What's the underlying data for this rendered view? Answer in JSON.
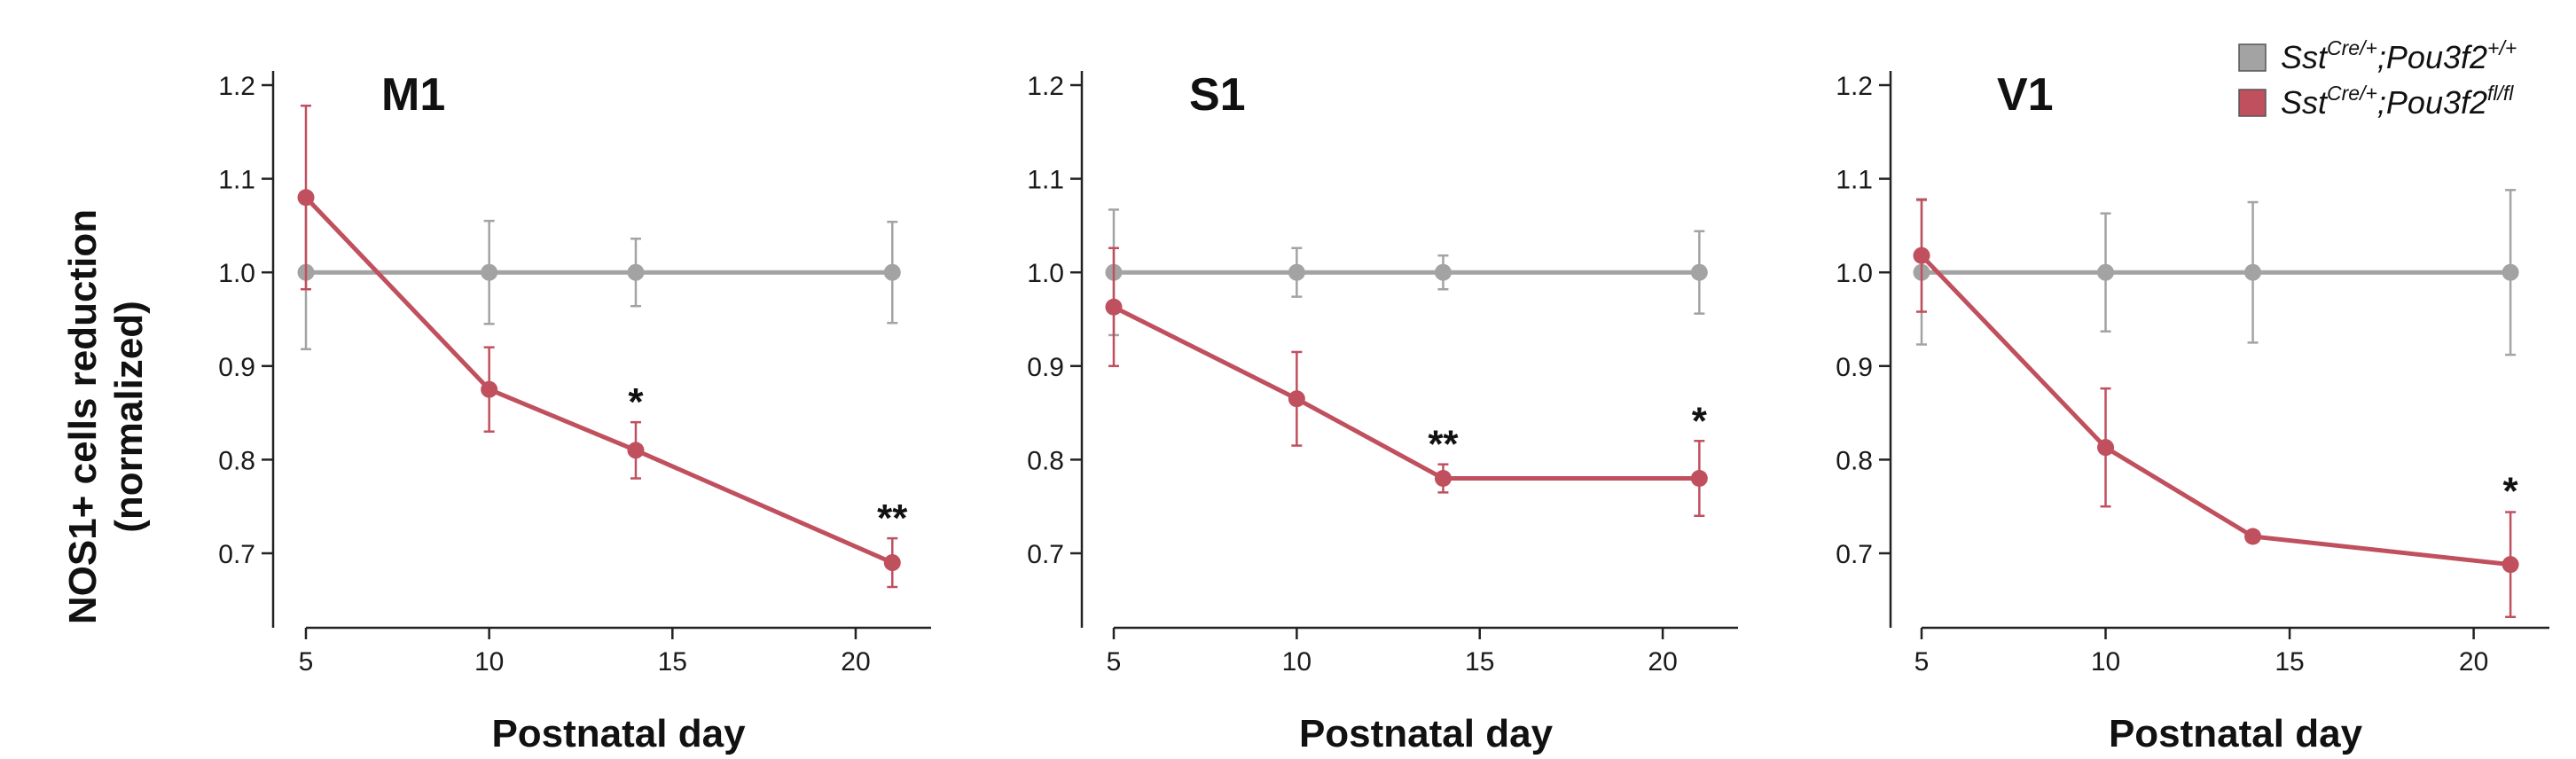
{
  "legend": [
    {
      "base": "Sst",
      "sup1": "Cre/+",
      "mid": ";Pou3f2",
      "sup2": "+/+",
      "color": "#a3a3a3"
    },
    {
      "base": "Sst",
      "sup1": "Cre/+",
      "mid": ";Pou3f2",
      "sup2": "fl/fl",
      "color": "#c0505e"
    }
  ],
  "colors": {
    "control": "#a3a3a3",
    "mutant": "#c0505e",
    "axis": "#222222"
  },
  "chart_data": [
    {
      "type": "line",
      "title": "M1",
      "xlabel": "Postnatal day",
      "ylabel_line1": "NOS1+ cells reduction",
      "ylabel_line2": "(normalized)",
      "xticks": [
        5,
        10,
        15,
        20
      ],
      "yticks": [
        "1.2",
        "1.1",
        "1.0",
        "0.9",
        "0.8",
        "0.7"
      ],
      "x": [
        5,
        10,
        14,
        21
      ],
      "series": [
        {
          "values": [
            1.0,
            1.0,
            1.0,
            1.0
          ],
          "err": [
            0.082,
            0.055,
            0.036,
            0.054
          ],
          "color": "#a3a3a3"
        },
        {
          "values": [
            1.08,
            0.875,
            0.81,
            0.69
          ],
          "err": [
            0.098,
            0.045,
            0.03,
            0.026
          ],
          "color": "#c0505e"
        }
      ],
      "significance": [
        {
          "x": 14,
          "y": 0.84,
          "label": "*"
        },
        {
          "x": 21,
          "y": 0.716,
          "label": "**"
        }
      ]
    },
    {
      "type": "line",
      "title": "S1",
      "xlabel": "Postnatal day",
      "xticks": [
        5,
        10,
        15,
        20
      ],
      "yticks": [
        "1.2",
        "1.1",
        "1.0",
        "0.9",
        "0.8",
        "0.7"
      ],
      "x": [
        5,
        10,
        14,
        21
      ],
      "series": [
        {
          "values": [
            1.0,
            1.0,
            1.0,
            1.0
          ],
          "err": [
            0.067,
            0.026,
            0.018,
            0.044
          ],
          "color": "#a3a3a3"
        },
        {
          "values": [
            0.963,
            0.865,
            0.78,
            0.78
          ],
          "err": [
            0.063,
            0.05,
            0.015,
            0.04
          ],
          "color": "#c0505e"
        }
      ],
      "significance": [
        {
          "x": 14,
          "y": 0.795,
          "label": "**"
        },
        {
          "x": 21,
          "y": 0.82,
          "label": "*"
        }
      ]
    },
    {
      "type": "line",
      "title": "V1",
      "xlabel": "Postnatal day",
      "xticks": [
        5,
        10,
        15,
        20
      ],
      "yticks": [
        "1.2",
        "1.1",
        "1.0",
        "0.9",
        "0.8",
        "0.7"
      ],
      "x": [
        5,
        10,
        14,
        21
      ],
      "series": [
        {
          "values": [
            1.0,
            1.0,
            1.0,
            1.0
          ],
          "err": [
            0.077,
            0.063,
            0.075,
            0.088
          ],
          "color": "#a3a3a3"
        },
        {
          "values": [
            1.018,
            0.813,
            0.718,
            0.688
          ],
          "err": [
            0.06,
            0.063,
            0.005,
            0.056
          ],
          "color": "#c0505e"
        }
      ],
      "significance": [
        {
          "x": 21,
          "y": 0.745,
          "label": "*"
        }
      ]
    }
  ]
}
